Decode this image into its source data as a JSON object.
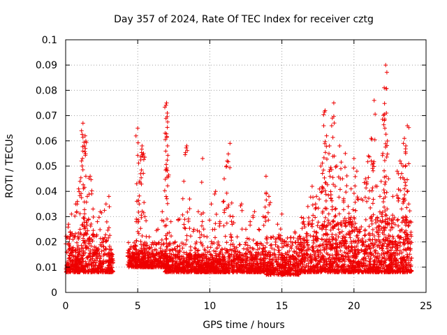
{
  "chart_data": {
    "type": "scatter",
    "title": "Day 357 of 2024, Rate Of TEC Index for receiver cztg",
    "xlabel": "GPS time / hours",
    "ylabel": "ROTI / TECUs",
    "xlim": [
      0,
      25
    ],
    "ylim": [
      0,
      0.1
    ],
    "xticks": [
      "0",
      "5",
      "10",
      "15",
      "20",
      "25"
    ],
    "yticks": [
      "0",
      "0.01",
      "0.02",
      "0.03",
      "0.04",
      "0.05",
      "0.06",
      "0.07",
      "0.08",
      "0.09",
      "0.1"
    ],
    "grid": true,
    "marker": "+",
    "color": "#ee0000",
    "series": [
      {
        "name": "ROTI",
        "points": [
          [
            0.1,
            0.012
          ],
          [
            0.2,
            0.027
          ],
          [
            0.3,
            0.018
          ],
          [
            0.4,
            0.031
          ],
          [
            0.5,
            0.009
          ],
          [
            0.6,
            0.022
          ],
          [
            0.7,
            0.035
          ],
          [
            0.8,
            0.014
          ],
          [
            0.9,
            0.041
          ],
          [
            1.0,
            0.025
          ],
          [
            1.1,
            0.052
          ],
          [
            1.2,
            0.067
          ],
          [
            1.3,
            0.058
          ],
          [
            1.35,
            0.062
          ],
          [
            1.4,
            0.046
          ],
          [
            1.5,
            0.038
          ],
          [
            1.6,
            0.029
          ],
          [
            1.7,
            0.046
          ],
          [
            1.8,
            0.039
          ],
          [
            1.9,
            0.033
          ],
          [
            2.0,
            0.018
          ],
          [
            2.2,
            0.028
          ],
          [
            2.4,
            0.032
          ],
          [
            2.6,
            0.02
          ],
          [
            2.8,
            0.035
          ],
          [
            3.0,
            0.038
          ],
          [
            3.1,
            0.015
          ],
          [
            4.5,
            0.012
          ],
          [
            4.7,
            0.018
          ],
          [
            4.9,
            0.028
          ],
          [
            5.0,
            0.065
          ],
          [
            5.1,
            0.035
          ],
          [
            5.2,
            0.047
          ],
          [
            5.3,
            0.058
          ],
          [
            5.4,
            0.055
          ],
          [
            5.5,
            0.03
          ],
          [
            5.8,
            0.022
          ],
          [
            6.1,
            0.019
          ],
          [
            6.4,
            0.025
          ],
          [
            6.7,
            0.032
          ],
          [
            6.9,
            0.063
          ],
          [
            7.0,
            0.075
          ],
          [
            7.05,
            0.071
          ],
          [
            7.3,
            0.028
          ],
          [
            7.6,
            0.02
          ],
          [
            7.9,
            0.029
          ],
          [
            8.2,
            0.044
          ],
          [
            8.4,
            0.058
          ],
          [
            8.6,
            0.037
          ],
          [
            8.9,
            0.025
          ],
          [
            9.2,
            0.032
          ],
          [
            9.5,
            0.053
          ],
          [
            9.8,
            0.022
          ],
          [
            10.1,
            0.035
          ],
          [
            10.4,
            0.04
          ],
          [
            10.7,
            0.028
          ],
          [
            11.0,
            0.045
          ],
          [
            11.2,
            0.052
          ],
          [
            11.4,
            0.059
          ],
          [
            11.6,
            0.03
          ],
          [
            11.9,
            0.022
          ],
          [
            12.2,
            0.035
          ],
          [
            12.5,
            0.025
          ],
          [
            12.8,
            0.028
          ],
          [
            13.1,
            0.032
          ],
          [
            13.4,
            0.025
          ],
          [
            13.7,
            0.03
          ],
          [
            13.9,
            0.046
          ],
          [
            14.1,
            0.038
          ],
          [
            14.4,
            0.022
          ],
          [
            14.7,
            0.027
          ],
          [
            15.0,
            0.031
          ],
          [
            15.3,
            0.02
          ],
          [
            15.6,
            0.018
          ],
          [
            15.9,
            0.024
          ],
          [
            16.2,
            0.022
          ],
          [
            16.5,
            0.028
          ],
          [
            16.8,
            0.034
          ],
          [
            17.1,
            0.042
          ],
          [
            17.4,
            0.038
          ],
          [
            17.7,
            0.05
          ],
          [
            17.9,
            0.066
          ],
          [
            18.0,
            0.072
          ],
          [
            18.1,
            0.062
          ],
          [
            18.3,
            0.058
          ],
          [
            18.5,
            0.069
          ],
          [
            18.6,
            0.075
          ],
          [
            18.8,
            0.05
          ],
          [
            19.0,
            0.058
          ],
          [
            19.2,
            0.045
          ],
          [
            19.4,
            0.055
          ],
          [
            19.6,
            0.034
          ],
          [
            19.8,
            0.041
          ],
          [
            20.0,
            0.053
          ],
          [
            20.2,
            0.048
          ],
          [
            20.5,
            0.037
          ],
          [
            20.8,
            0.045
          ],
          [
            21.0,
            0.054
          ],
          [
            21.2,
            0.061
          ],
          [
            21.4,
            0.076
          ],
          [
            21.6,
            0.042
          ],
          [
            21.8,
            0.038
          ],
          [
            22.0,
            0.055
          ],
          [
            22.1,
            0.081
          ],
          [
            22.2,
            0.09
          ],
          [
            22.25,
            0.071
          ],
          [
            22.4,
            0.045
          ],
          [
            22.7,
            0.038
          ],
          [
            23.0,
            0.048
          ],
          [
            23.2,
            0.052
          ],
          [
            23.4,
            0.05
          ],
          [
            23.5,
            0.061
          ],
          [
            23.6,
            0.058
          ],
          [
            23.7,
            0.066
          ],
          [
            23.8,
            0.035
          ],
          [
            23.9,
            0.028
          ]
        ],
        "background_clusters": [
          {
            "x_start": 0.0,
            "x_end": 3.3,
            "y_min": 0.004,
            "y_max": 0.024
          },
          {
            "x_start": 4.3,
            "x_end": 6.9,
            "y_min": 0.006,
            "y_max": 0.02
          },
          {
            "x_start": 6.9,
            "x_end": 13.9,
            "y_min": 0.004,
            "y_max": 0.02
          },
          {
            "x_start": 13.9,
            "x_end": 16.2,
            "y_min": 0.003,
            "y_max": 0.022
          },
          {
            "x_start": 16.2,
            "x_end": 24.0,
            "y_min": 0.004,
            "y_max": 0.03
          }
        ]
      }
    ]
  }
}
